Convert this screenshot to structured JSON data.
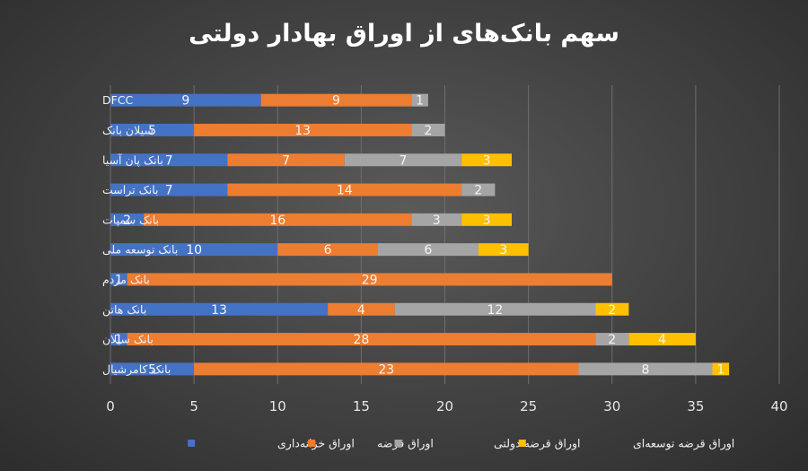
{
  "chart_data": {
    "type": "bar",
    "orientation": "horizontal",
    "stacked": true,
    "title": "سهم بانک‌های از اوراق بهادار دولتی",
    "categories": [
      "DFCC",
      "سیلان بانک",
      "بانک پان آسیا",
      "بانک تراست",
      "بانک سمپات",
      "بانک توسعه ملی",
      "بانک مردم",
      "بانک هاتن",
      "بانک سیلان",
      "بانک کامرشیال"
    ],
    "series": [
      {
        "name": "اوراق خزانه‌داری",
        "color": "#4472C4",
        "values": [
          9,
          5,
          7,
          7,
          2,
          10,
          1,
          13,
          1,
          5
        ]
      },
      {
        "name": "اوراق قرضه",
        "color": "#ED7D31",
        "values": [
          9,
          13,
          7,
          14,
          16,
          6,
          29,
          4,
          28,
          23
        ]
      },
      {
        "name": "اوراق قرضه دولتی",
        "color": "#A5A5A5",
        "values": [
          1,
          2,
          7,
          2,
          3,
          6,
          null,
          12,
          2,
          8
        ]
      },
      {
        "name": "اوراق قرضه توسعه‌ای",
        "color": "#FFC000",
        "values": [
          null,
          null,
          3,
          null,
          3,
          3,
          null,
          2,
          4,
          1
        ]
      }
    ],
    "xlim": [
      0,
      40
    ],
    "x_ticks": [
      0,
      5,
      10,
      15,
      20,
      25,
      30,
      35,
      40
    ],
    "grid": true,
    "legend_position": "bottom"
  }
}
